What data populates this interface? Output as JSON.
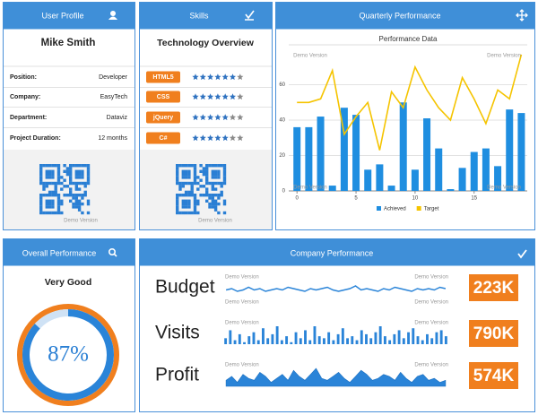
{
  "profile": {
    "title": "User Profile",
    "name": "Mike Smith",
    "fields": [
      {
        "label": "Position:",
        "value": "Developer"
      },
      {
        "label": "Company:",
        "value": "EasyTech"
      },
      {
        "label": "Department:",
        "value": "Dataviz"
      },
      {
        "label": "Project Duration:",
        "value": "12 months"
      }
    ],
    "watermark": "Demo Version"
  },
  "skills": {
    "title": "Skills",
    "heading": "Technology Overview",
    "max_stars": 7,
    "items": [
      {
        "name": "HTML5",
        "stars": 6
      },
      {
        "name": "CSS",
        "stars": 6
      },
      {
        "name": "jQuery",
        "stars": 5
      },
      {
        "name": "C#",
        "stars": 5
      }
    ],
    "watermark": "Demo Version"
  },
  "quarterly": {
    "title": "Quarterly Performance",
    "chart_data": {
      "type": "bar",
      "title": "Performance Data",
      "x": [
        0,
        1,
        2,
        3,
        4,
        5,
        6,
        7,
        8,
        9,
        10,
        11,
        12,
        13,
        14,
        15,
        16,
        17,
        18,
        19
      ],
      "series": [
        {
          "name": "Achieved",
          "type": "bar",
          "color": "#1f8ee0",
          "values": [
            36,
            36,
            42,
            3,
            47,
            43,
            12,
            15,
            3,
            50,
            12,
            41,
            24,
            1,
            13,
            22,
            24,
            14,
            46,
            44
          ]
        },
        {
          "name": "Target",
          "type": "line",
          "color": "#f5c400",
          "values": [
            50,
            50,
            52,
            68,
            32,
            42,
            50,
            23,
            56,
            47,
            70,
            57,
            47,
            40,
            64,
            52,
            38,
            57,
            52,
            77
          ]
        }
      ],
      "xlim": [
        -0.7,
        19.5
      ],
      "xticks": [
        0,
        5,
        10,
        15
      ],
      "ylim": [
        0,
        80
      ],
      "yticks": [
        0,
        20,
        40,
        60
      ],
      "grid": true,
      "legend": "bottom",
      "watermark": "Demo Version"
    }
  },
  "overall": {
    "title": "Overall Performance",
    "rating": "Very Good",
    "gauge": {
      "value": 87,
      "label": "87%"
    }
  },
  "company": {
    "title": "Company Performance",
    "watermark": "Demo Version",
    "rows": [
      {
        "name": "Budget",
        "type": "line",
        "total": "223K",
        "values": [
          5,
          6,
          4,
          5,
          7,
          5,
          6,
          4,
          5,
          6,
          5,
          7,
          6,
          5,
          4,
          6,
          5,
          6,
          7,
          5,
          4,
          5,
          6,
          8,
          5,
          6,
          5,
          4,
          6,
          5,
          7,
          6,
          5,
          4,
          6,
          5,
          6,
          5,
          7,
          6
        ]
      },
      {
        "name": "Visits",
        "type": "bar",
        "total": "790K",
        "values": [
          3,
          7,
          2,
          5,
          1,
          4,
          6,
          2,
          8,
          3,
          5,
          9,
          2,
          4,
          1,
          6,
          3,
          7,
          2,
          9,
          4,
          3,
          6,
          2,
          5,
          8,
          3,
          4,
          2,
          7,
          5,
          3,
          6,
          9,
          4,
          2,
          5,
          7,
          3,
          6,
          8,
          4,
          2,
          5,
          3,
          6,
          7,
          4
        ]
      },
      {
        "name": "Profit",
        "type": "area",
        "total": "574K",
        "values": [
          3,
          5,
          2,
          6,
          4,
          3,
          7,
          5,
          2,
          4,
          6,
          3,
          8,
          5,
          3,
          6,
          9,
          4,
          3,
          5,
          7,
          4,
          2,
          5,
          8,
          6,
          3,
          4,
          6,
          5,
          3,
          7,
          4,
          2,
          5,
          6,
          3,
          4,
          2,
          3
        ]
      }
    ]
  }
}
